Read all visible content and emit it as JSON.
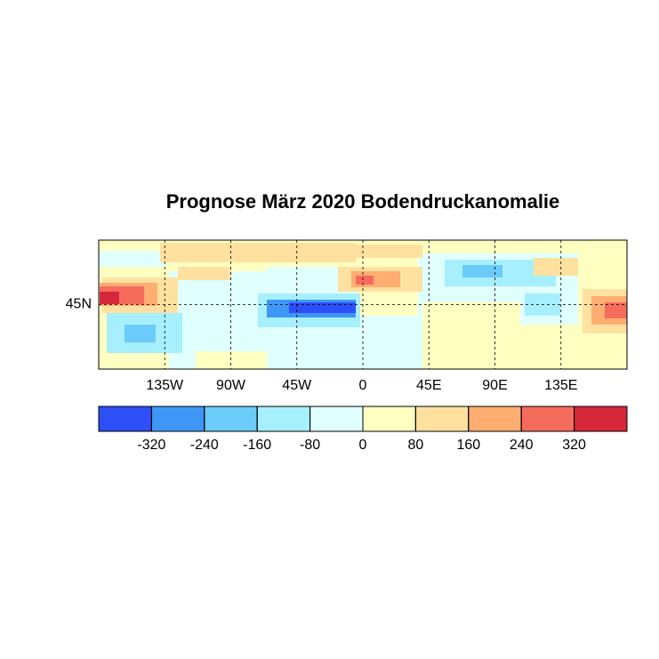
{
  "chart_data": {
    "type": "map",
    "title": "Prognose März 2020 Bodendruckanomalie",
    "xlim": [
      -180,
      180
    ],
    "xticks": [
      {
        "value": -135,
        "label": "135W"
      },
      {
        "value": -90,
        "label": "90W"
      },
      {
        "value": -45,
        "label": "45W"
      },
      0,
      {
        "value": 45,
        "label": "45E"
      },
      {
        "value": 90,
        "label": "90E"
      },
      {
        "value": 135,
        "label": "135E"
      }
    ],
    "ylim": [
      0,
      90
    ],
    "yticks": [
      {
        "value": 45,
        "label": "45N"
      }
    ],
    "grid": true,
    "colorbar": {
      "lim": [
        -400,
        400
      ],
      "ticks": [
        -320,
        -240,
        -160,
        -80,
        0,
        80,
        160,
        240,
        320
      ],
      "colors": [
        "#2e4ff6",
        "#3e97f6",
        "#6bcbf9",
        "#a6efff",
        "#e0ffff",
        "#ffffc2",
        "#ffe19f",
        "#ffad71",
        "#f56c5c",
        "#d6273b"
      ]
    }
  }
}
